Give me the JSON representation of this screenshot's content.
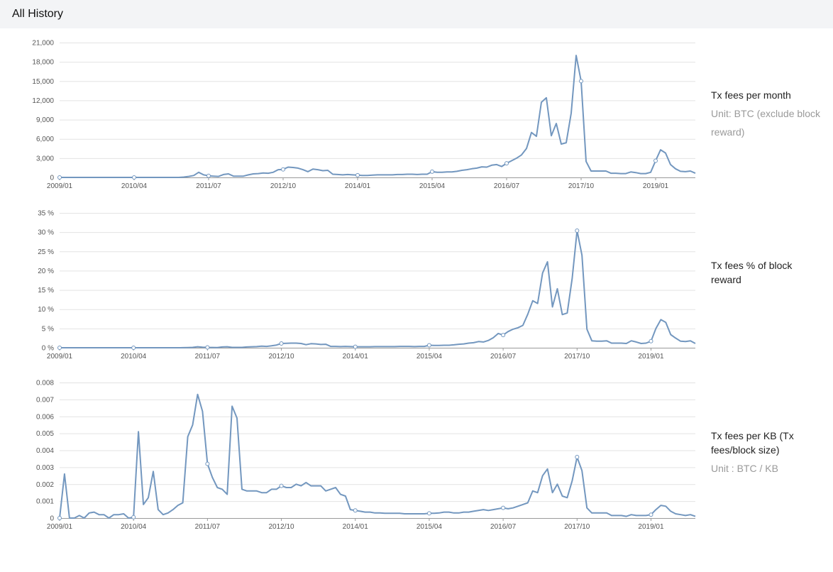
{
  "header": {
    "title": "All History"
  },
  "colors": {
    "series": "#7397bf",
    "grid": "#e3e3e3",
    "header_bg": "#f3f4f6",
    "unit_text": "#9a9a9a"
  },
  "panels": [
    {
      "title": "Tx fees per month",
      "unit": "Unit: BTC (exclude block reward)"
    },
    {
      "title": "Tx fees % of block reward",
      "unit": ""
    },
    {
      "title": "Tx fees per KB (Tx fees/block size)",
      "unit": "Unit : BTC / KB"
    }
  ],
  "chart_data": [
    {
      "type": "line",
      "x_tick_labels": [
        "2009/01",
        "2010/04",
        "2011/07",
        "2012/10",
        "2014/01",
        "2015/04",
        "2016/07",
        "2017/10",
        "2019/01"
      ],
      "y_tick_labels": [
        "0",
        "3,000",
        "6,000",
        "9,000",
        "12,000",
        "15,000",
        "18,000",
        "21,000"
      ],
      "ylim": [
        0,
        21000
      ],
      "grid": true,
      "series": [
        {
          "values": [
            0,
            0,
            0,
            0,
            0,
            0,
            0,
            0,
            0,
            0,
            0,
            0,
            0,
            0,
            0,
            0,
            0,
            0,
            0,
            0,
            0,
            0,
            0,
            0,
            0,
            50,
            150,
            300,
            800,
            400,
            250,
            200,
            150,
            450,
            550,
            200,
            200,
            200,
            400,
            550,
            600,
            700,
            650,
            800,
            1200,
            1250,
            1600,
            1550,
            1450,
            1200,
            900,
            1300,
            1200,
            1050,
            1100,
            500,
            450,
            400,
            450,
            400,
            350,
            300,
            300,
            350,
            400,
            400,
            400,
            400,
            450,
            450,
            500,
            500,
            450,
            500,
            500,
            900,
            800,
            800,
            850,
            850,
            950,
            1100,
            1200,
            1350,
            1450,
            1650,
            1600,
            1900,
            2000,
            1700,
            2200,
            2600,
            3000,
            3500,
            4500,
            7000,
            6400,
            11700,
            12400,
            6500,
            8400,
            5200,
            5400,
            10000,
            19000,
            15000,
            2500,
            1000,
            1000,
            1000,
            1000,
            650,
            650,
            600,
            600,
            850,
            750,
            600,
            600,
            800,
            2600,
            4300,
            3800,
            2000,
            1350,
            950,
            900,
            1000,
            650
          ]
        }
      ]
    },
    {
      "type": "line",
      "x_tick_labels": [
        "2009/01",
        "2010/04",
        "2011/07",
        "2012/10",
        "2014/01",
        "2015/04",
        "2016/07",
        "2017/10",
        "2019/01"
      ],
      "y_tick_labels": [
        "0 %",
        "5 %",
        "10 %",
        "15 %",
        "20 %",
        "25 %",
        "30 %",
        "35 %"
      ],
      "ylim": [
        0,
        35
      ],
      "grid": true,
      "series": [
        {
          "values": [
            0,
            0,
            0,
            0,
            0,
            0,
            0,
            0,
            0,
            0,
            0,
            0,
            0,
            0,
            0,
            0,
            0,
            0,
            0,
            0,
            0,
            0,
            0,
            0,
            0,
            0.02,
            0.05,
            0.1,
            0.25,
            0.15,
            0.1,
            0.08,
            0.06,
            0.2,
            0.25,
            0.1,
            0.1,
            0.1,
            0.2,
            0.25,
            0.3,
            0.4,
            0.35,
            0.5,
            0.7,
            1.1,
            1.15,
            1.2,
            1.2,
            1.1,
            0.8,
            1.05,
            1.0,
            0.85,
            0.9,
            0.35,
            0.35,
            0.3,
            0.35,
            0.3,
            0.25,
            0.25,
            0.25,
            0.25,
            0.3,
            0.3,
            0.3,
            0.3,
            0.3,
            0.35,
            0.35,
            0.35,
            0.3,
            0.35,
            0.35,
            0.65,
            0.6,
            0.6,
            0.65,
            0.65,
            0.75,
            0.9,
            1.0,
            1.2,
            1.3,
            1.6,
            1.5,
            1.9,
            2.6,
            3.7,
            3.3,
            4.2,
            4.8,
            5.2,
            5.8,
            8.7,
            12.2,
            11.5,
            19.4,
            22.3,
            10.6,
            15.3,
            8.6,
            9.0,
            18.0,
            30.4,
            24.0,
            4.8,
            1.8,
            1.7,
            1.7,
            1.8,
            1.2,
            1.2,
            1.2,
            1.1,
            1.8,
            1.5,
            1.1,
            1.2,
            1.7,
            5.0,
            7.3,
            6.6,
            3.4,
            2.5,
            1.7,
            1.6,
            1.8,
            1.1
          ]
        }
      ]
    },
    {
      "type": "line",
      "x_tick_labels": [
        "2009/01",
        "2010/04",
        "2011/07",
        "2012/10",
        "2014/01",
        "2015/04",
        "2016/07",
        "2017/10",
        "2019/01"
      ],
      "y_tick_labels": [
        "0",
        "0.001",
        "0.002",
        "0.003",
        "0.004",
        "0.005",
        "0.006",
        "0.007",
        "0.008"
      ],
      "ylim": [
        0,
        0.008
      ],
      "grid": true,
      "series": [
        {
          "values": [
            0,
            0.0026,
            0,
            0,
            0.00015,
            0,
            0.0003,
            0.00035,
            0.0002,
            0.0002,
            0,
            0.0002,
            0.0002,
            0.00025,
            0,
            5e-05,
            0.0051,
            0.0008,
            0.0012,
            0.00275,
            0.0005,
            0.0002,
            0.0003,
            0.0005,
            0.00075,
            0.0009,
            0.0048,
            0.0055,
            0.0073,
            0.0063,
            0.0032,
            0.0024,
            0.0018,
            0.0017,
            0.0014,
            0.0066,
            0.0059,
            0.0017,
            0.0016,
            0.0016,
            0.0016,
            0.0015,
            0.0015,
            0.0017,
            0.0017,
            0.0019,
            0.0018,
            0.0018,
            0.002,
            0.0019,
            0.0021,
            0.0019,
            0.0019,
            0.0019,
            0.0016,
            0.0017,
            0.0018,
            0.0014,
            0.0013,
            0.0005,
            0.00045,
            0.0004,
            0.00035,
            0.00035,
            0.0003,
            0.0003,
            0.00028,
            0.00028,
            0.00028,
            0.00028,
            0.00025,
            0.00025,
            0.00025,
            0.00025,
            0.00025,
            0.00028,
            0.00028,
            0.0003,
            0.00035,
            0.00035,
            0.0003,
            0.0003,
            0.00035,
            0.00035,
            0.0004,
            0.00045,
            0.0005,
            0.00045,
            0.0005,
            0.00055,
            0.0006,
            0.00055,
            0.0006,
            0.0007,
            0.0008,
            0.0009,
            0.0016,
            0.0015,
            0.0025,
            0.0029,
            0.0015,
            0.002,
            0.0013,
            0.0012,
            0.0022,
            0.0036,
            0.0028,
            0.0006,
            0.0003,
            0.0003,
            0.0003,
            0.0003,
            0.00015,
            0.00015,
            0.00015,
            0.0001,
            0.0002,
            0.00015,
            0.00015,
            0.00015,
            0.0002,
            0.0005,
            0.00075,
            0.0007,
            0.0004,
            0.00025,
            0.0002,
            0.00015,
            0.0002,
            0.0001
          ]
        }
      ]
    }
  ]
}
